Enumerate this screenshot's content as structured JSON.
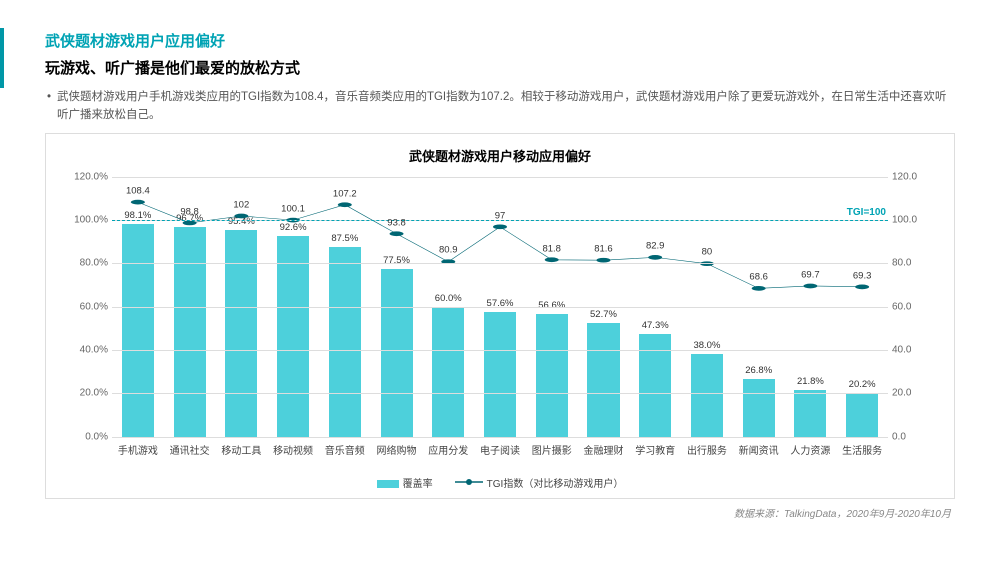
{
  "accent_color": "#00a3b4",
  "accent_bar_color": "#0097a7",
  "header": {
    "title1": "武侠题材游戏用户应用偏好",
    "title1_color": "#00a3b4",
    "title2": "玩游戏、听广播是他们最爱的放松方式",
    "bullet": "武侠题材游戏用户手机游戏类应用的TGI指数为108.4，音乐音频类应用的TGI指数为107.2。相较于移动游戏用户，武侠题材游戏用户除了更爱玩游戏外，在日常生活中还喜欢听听广播来放松自己。"
  },
  "chart": {
    "title": "武侠题材游戏用户移动应用偏好",
    "categories": [
      "手机游戏",
      "通讯社交",
      "移动工具",
      "移动视频",
      "音乐音频",
      "网络购物",
      "应用分发",
      "电子阅读",
      "图片摄影",
      "金融理财",
      "学习教育",
      "出行服务",
      "新闻资讯",
      "人力资源",
      "生活服务"
    ],
    "bar_values": [
      98.1,
      96.7,
      95.4,
      92.6,
      87.5,
      77.5,
      60.0,
      57.6,
      56.6,
      52.7,
      47.3,
      38.0,
      26.8,
      21.8,
      20.2
    ],
    "bar_labels": [
      "98.1%",
      "96.7%",
      "95.4%",
      "92.6%",
      "87.5%",
      "77.5%",
      "60.0%",
      "57.6%",
      "56.6%",
      "52.7%",
      "47.3%",
      "38.0%",
      "26.8%",
      "21.8%",
      "20.2%"
    ],
    "line_values": [
      108.4,
      98.8,
      102.0,
      100.1,
      107.2,
      93.8,
      80.9,
      97.0,
      81.8,
      81.6,
      82.9,
      80.0,
      68.6,
      69.7,
      69.3
    ],
    "bar_color": "#4dd0db",
    "line_color": "#006673",
    "tgi_ref_value": 100,
    "tgi_ref_label": "TGI=100",
    "tgi_ref_color": "#00a3b4",
    "left_axis": {
      "min": 0,
      "max": 120,
      "step": 20,
      "fmt_pct": true
    },
    "right_axis": {
      "min": 0,
      "max": 120,
      "step": 20
    },
    "grid_color": "#dddddd",
    "background": "#ffffff",
    "legend": {
      "bar": "覆盖率",
      "line": "TGI指数（对比移动游戏用户）"
    }
  },
  "source": "数据来源：TalkingData，2020年9月-2020年10月"
}
